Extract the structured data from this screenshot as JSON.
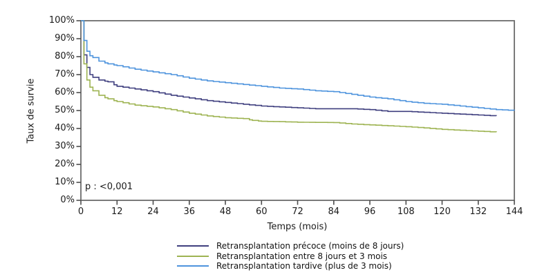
{
  "chart_data": {
    "type": "line",
    "subtype": "kaplan-meier-step",
    "title": "",
    "xlabel": "Temps (mois)",
    "ylabel": "Taux de survie",
    "annotation": "p : <0,001",
    "xlim": [
      0,
      144
    ],
    "ylim": [
      0,
      100
    ],
    "grid": false,
    "legend_position": "bottom",
    "x_ticks": [
      0,
      12,
      24,
      36,
      48,
      60,
      72,
      84,
      96,
      108,
      120,
      132,
      144
    ],
    "y_tick_labels": [
      "100%",
      "90%",
      "80%",
      "70%",
      "60%",
      "50%",
      "40%",
      "30%",
      "20%",
      "10%",
      "0%"
    ],
    "axis_color": "#6b6b6b",
    "series": [
      {
        "name": "Retransplantation précoce (moins de 8 jours)",
        "color": "#3e3e7e",
        "points": [
          [
            0,
            100
          ],
          [
            1,
            81
          ],
          [
            2,
            74
          ],
          [
            3,
            70
          ],
          [
            4,
            68.5
          ],
          [
            6,
            67
          ],
          [
            9,
            66
          ],
          [
            12,
            63.5
          ],
          [
            18,
            62
          ],
          [
            24,
            60.5
          ],
          [
            30,
            58.5
          ],
          [
            36,
            57
          ],
          [
            42,
            55.5
          ],
          [
            48,
            54.5
          ],
          [
            54,
            53.5
          ],
          [
            60,
            52.5
          ],
          [
            66,
            52
          ],
          [
            72,
            51.5
          ],
          [
            78,
            51
          ],
          [
            84,
            51
          ],
          [
            90,
            51
          ],
          [
            96,
            50.5
          ],
          [
            102,
            49.5
          ],
          [
            108,
            49.5
          ],
          [
            114,
            49
          ],
          [
            120,
            48.5
          ],
          [
            126,
            48
          ],
          [
            132,
            47.5
          ],
          [
            138,
            47
          ]
        ]
      },
      {
        "name": "Retransplantation entre 8 jours et 3 mois",
        "color": "#9db351",
        "points": [
          [
            0,
            100
          ],
          [
            1,
            76
          ],
          [
            2,
            67
          ],
          [
            3,
            63
          ],
          [
            4,
            61
          ],
          [
            6,
            58.5
          ],
          [
            9,
            56.5
          ],
          [
            12,
            55
          ],
          [
            18,
            53
          ],
          [
            24,
            52
          ],
          [
            30,
            50.5
          ],
          [
            36,
            48.5
          ],
          [
            42,
            47
          ],
          [
            48,
            46
          ],
          [
            54,
            45.5
          ],
          [
            57,
            44.5
          ],
          [
            60,
            44
          ],
          [
            66,
            43.8
          ],
          [
            72,
            43.5
          ],
          [
            78,
            43.4
          ],
          [
            84,
            43.3
          ],
          [
            90,
            42.5
          ],
          [
            96,
            42
          ],
          [
            102,
            41.5
          ],
          [
            108,
            41
          ],
          [
            114,
            40.3
          ],
          [
            120,
            39.5
          ],
          [
            126,
            39
          ],
          [
            132,
            38.5
          ],
          [
            138,
            38
          ]
        ]
      },
      {
        "name": "Retransplantation tardive (plus de 3 mois)",
        "color": "#4d93dd",
        "points": [
          [
            0,
            100
          ],
          [
            1,
            89
          ],
          [
            2,
            83
          ],
          [
            3,
            80.5
          ],
          [
            4,
            79.5
          ],
          [
            6,
            77.5
          ],
          [
            9,
            76
          ],
          [
            12,
            75
          ],
          [
            18,
            73
          ],
          [
            24,
            71.5
          ],
          [
            30,
            70
          ],
          [
            36,
            68
          ],
          [
            42,
            66.5
          ],
          [
            48,
            65.5
          ],
          [
            54,
            64.5
          ],
          [
            60,
            63.5
          ],
          [
            66,
            62.5
          ],
          [
            72,
            62
          ],
          [
            78,
            61
          ],
          [
            84,
            60.5
          ],
          [
            90,
            59
          ],
          [
            96,
            57.5
          ],
          [
            102,
            56.5
          ],
          [
            108,
            55
          ],
          [
            114,
            54
          ],
          [
            120,
            53.5
          ],
          [
            126,
            52.5
          ],
          [
            132,
            51.5
          ],
          [
            138,
            50.5
          ],
          [
            144,
            50
          ]
        ]
      }
    ]
  }
}
